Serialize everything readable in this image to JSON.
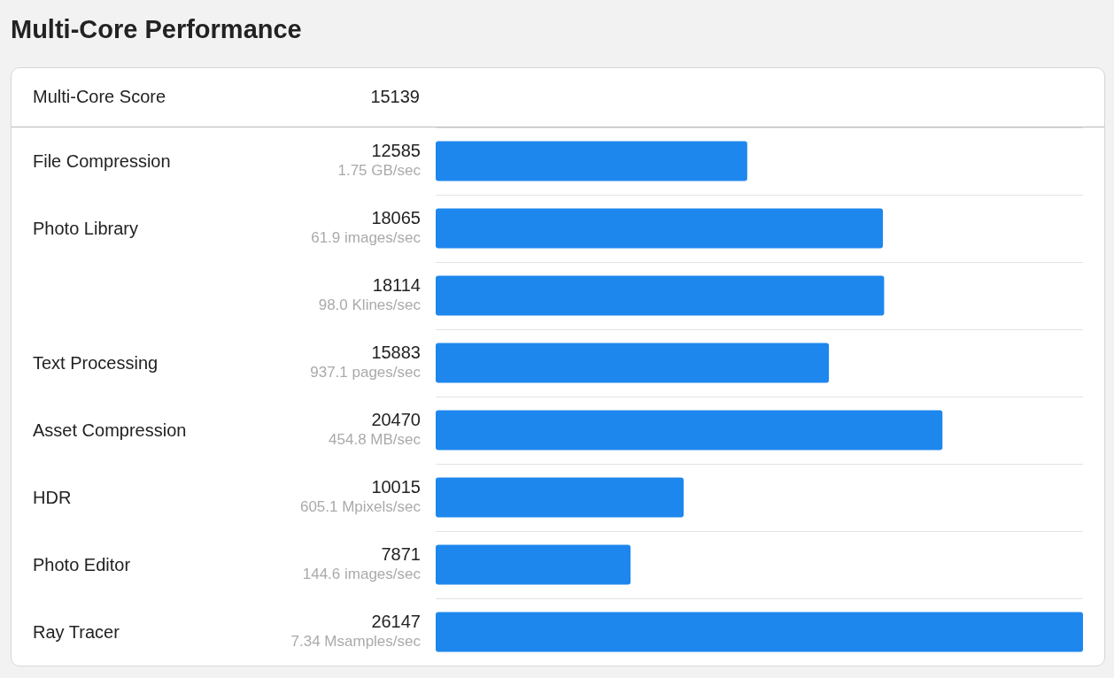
{
  "chart_data": {
    "type": "bar",
    "orientation": "horizontal",
    "title": "Multi-Core Performance",
    "annotations": [
      "Multi-Core Score",
      "15139",
      "1.75 GB/sec",
      "61.9 images/sec",
      "98.0 Klines/sec",
      "937.1 pages/sec",
      "454.8 MB/sec",
      "605.1 Mpixels/sec",
      "144.6 images/sec",
      "7.34 Msamples/sec"
    ],
    "categories": [
      "File Compression",
      "Photo Library",
      null,
      "Text Processing",
      "Asset Compression",
      "HDR",
      "Photo Editor",
      "Ray Tracer"
    ],
    "values": [
      12585,
      18065,
      18114,
      15883,
      20470,
      10015,
      7871,
      26147
    ],
    "color": "#1e87ee",
    "data_labels": true,
    "grid": "y"
  }
}
